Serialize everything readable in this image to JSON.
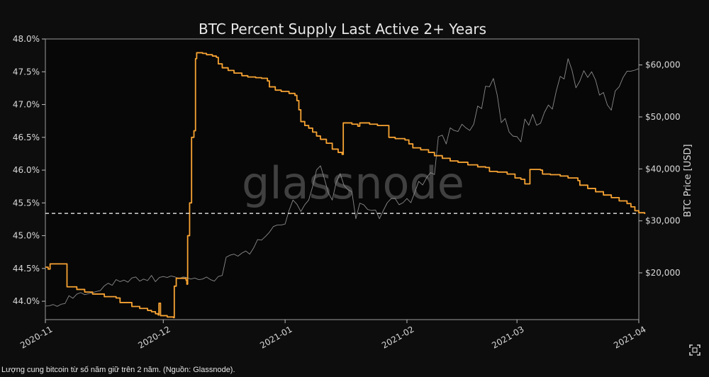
{
  "chart_data": {
    "type": "line",
    "title": "BTC Percent Supply Last Active 2+ Years",
    "watermark": "glassnode",
    "xlabel": "",
    "x_tick_labels": [
      "2020-11",
      "2020-12",
      "2021-01",
      "2021-02",
      "2021-03",
      "2021-04"
    ],
    "x_range_days": [
      0,
      151
    ],
    "x_tick_days": [
      0,
      30,
      61,
      92,
      120,
      151
    ],
    "y_left": {
      "label": "",
      "range": [
        43.72,
        48.0
      ],
      "ticks": [
        44.0,
        44.5,
        45.0,
        45.5,
        46.0,
        46.5,
        47.0,
        47.5,
        48.0
      ],
      "tick_labels": [
        "44.0%",
        "44.5%",
        "45.0%",
        "45.5%",
        "46.0%",
        "46.5%",
        "47.0%",
        "47.5%",
        "48.0%"
      ]
    },
    "y_right": {
      "label": "BTC Price [USD]",
      "range": [
        11000,
        65000
      ],
      "ticks": [
        20000,
        30000,
        40000,
        50000,
        60000
      ],
      "tick_labels": [
        "$20,000",
        "$30,000",
        "$40,000",
        "$50,000",
        "$60,000"
      ]
    },
    "reference_line": {
      "value": 45.34,
      "axis": "left",
      "style": "dashed"
    },
    "series": [
      {
        "name": "Percent Supply Last Active 2+ Years",
        "axis": "left",
        "color": "#f7a333",
        "step": true,
        "points": [
          [
            0,
            44.52
          ],
          [
            0.7,
            44.49
          ],
          [
            1.2,
            44.57
          ],
          [
            4.5,
            44.57
          ],
          [
            5.5,
            44.22
          ],
          [
            8,
            44.18
          ],
          [
            10,
            44.14
          ],
          [
            12,
            44.11
          ],
          [
            15,
            44.07
          ],
          [
            18,
            44.05
          ],
          [
            19,
            43.98
          ],
          [
            22,
            43.92
          ],
          [
            24,
            43.89
          ],
          [
            26,
            43.86
          ],
          [
            27,
            43.84
          ],
          [
            28,
            43.81
          ],
          [
            28.7,
            43.79
          ],
          [
            28.9,
            43.97
          ],
          [
            29.3,
            43.78
          ],
          [
            31,
            43.76
          ],
          [
            32.6,
            43.75
          ],
          [
            32.8,
            44.23
          ],
          [
            33.3,
            44.35
          ],
          [
            35.8,
            44.32
          ],
          [
            36,
            44.26
          ],
          [
            36.2,
            45.0
          ],
          [
            36.7,
            45.5
          ],
          [
            37.2,
            46.5
          ],
          [
            37.8,
            46.6
          ],
          [
            38.2,
            47.7
          ],
          [
            38.5,
            47.79
          ],
          [
            40,
            47.78
          ],
          [
            41,
            47.76
          ],
          [
            42.5,
            47.74
          ],
          [
            43.5,
            47.72
          ],
          [
            44,
            47.62
          ],
          [
            45,
            47.56
          ],
          [
            46.5,
            47.52
          ],
          [
            48,
            47.48
          ],
          [
            50,
            47.44
          ],
          [
            51.5,
            47.42
          ],
          [
            53.5,
            47.41
          ],
          [
            55,
            47.4
          ],
          [
            56.5,
            47.36
          ],
          [
            57,
            47.27
          ],
          [
            58.5,
            47.22
          ],
          [
            60,
            47.2
          ],
          [
            62,
            47.17
          ],
          [
            63.5,
            47.14
          ],
          [
            64,
            47.06
          ],
          [
            64.5,
            46.92
          ],
          [
            65,
            46.74
          ],
          [
            66,
            46.68
          ],
          [
            67,
            46.64
          ],
          [
            68,
            46.58
          ],
          [
            69,
            46.52
          ],
          [
            70,
            46.47
          ],
          [
            71.5,
            46.41
          ],
          [
            73,
            46.32
          ],
          [
            74.5,
            46.27
          ],
          [
            75.5,
            46.24
          ],
          [
            75.8,
            46.72
          ],
          [
            78,
            46.7
          ],
          [
            79.5,
            46.67
          ],
          [
            80,
            46.72
          ],
          [
            82.5,
            46.7
          ],
          [
            84.5,
            46.68
          ],
          [
            87,
            46.68
          ],
          [
            87.4,
            46.5
          ],
          [
            89,
            46.48
          ],
          [
            91.5,
            46.46
          ],
          [
            92.5,
            46.4
          ],
          [
            93.5,
            46.34
          ],
          [
            95.5,
            46.31
          ],
          [
            97.5,
            46.27
          ],
          [
            99,
            46.22
          ],
          [
            101,
            46.18
          ],
          [
            103,
            46.14
          ],
          [
            105,
            46.12
          ],
          [
            107.5,
            46.08
          ],
          [
            110,
            46.05
          ],
          [
            112,
            46.04
          ],
          [
            113,
            45.98
          ],
          [
            115,
            45.97
          ],
          [
            117.5,
            45.94
          ],
          [
            119.5,
            45.88
          ],
          [
            121,
            45.86
          ],
          [
            122,
            45.79
          ],
          [
            123,
            45.79
          ],
          [
            123.3,
            46.01
          ],
          [
            126,
            46.0
          ],
          [
            126.5,
            45.94
          ],
          [
            128.5,
            45.93
          ],
          [
            131,
            45.91
          ],
          [
            133,
            45.88
          ],
          [
            135.5,
            45.84
          ],
          [
            136,
            45.77
          ],
          [
            138,
            45.72
          ],
          [
            140,
            45.67
          ],
          [
            142,
            45.62
          ],
          [
            144,
            45.58
          ],
          [
            146,
            45.53
          ],
          [
            148,
            45.49
          ],
          [
            149,
            45.44
          ],
          [
            150,
            45.38
          ],
          [
            151,
            45.35
          ],
          [
            152.5,
            45.33
          ]
        ]
      },
      {
        "name": "BTC Price [USD]",
        "axis": "right",
        "color": "#8a8a8a",
        "step": false,
        "points": [
          [
            0,
            13600
          ],
          [
            1,
            13650
          ],
          [
            2,
            13900
          ],
          [
            3,
            13550
          ],
          [
            4,
            13950
          ],
          [
            5,
            14100
          ],
          [
            6,
            15600
          ],
          [
            7,
            15100
          ],
          [
            8,
            15900
          ],
          [
            9,
            16200
          ],
          [
            10,
            15800
          ],
          [
            12,
            16200
          ],
          [
            14,
            16600
          ],
          [
            15,
            17500
          ],
          [
            16,
            18000
          ],
          [
            17,
            17600
          ],
          [
            18,
            18700
          ],
          [
            19,
            18300
          ],
          [
            20,
            18600
          ],
          [
            21,
            18200
          ],
          [
            22,
            19000
          ],
          [
            23,
            19200
          ],
          [
            24,
            18400
          ],
          [
            25,
            18800
          ],
          [
            26,
            18500
          ],
          [
            27,
            19500
          ],
          [
            28,
            18300
          ],
          [
            29,
            19100
          ],
          [
            30,
            19300
          ],
          [
            31,
            19100
          ],
          [
            32,
            19400
          ],
          [
            33,
            19200
          ],
          [
            34,
            18900
          ],
          [
            35,
            19200
          ],
          [
            36,
            19100
          ],
          [
            37,
            18800
          ],
          [
            38,
            19000
          ],
          [
            39,
            18700
          ],
          [
            40,
            18800
          ],
          [
            41,
            19200
          ],
          [
            42,
            18700
          ],
          [
            43,
            18400
          ],
          [
            44,
            19300
          ],
          [
            45,
            19500
          ],
          [
            46,
            23000
          ],
          [
            47,
            23400
          ],
          [
            48,
            23600
          ],
          [
            49,
            23200
          ],
          [
            50,
            23800
          ],
          [
            51,
            24200
          ],
          [
            52,
            23600
          ],
          [
            53,
            24800
          ],
          [
            54,
            26400
          ],
          [
            55,
            26300
          ],
          [
            56,
            27000
          ],
          [
            57,
            27800
          ],
          [
            58,
            28900
          ],
          [
            59,
            29200
          ],
          [
            60,
            29200
          ],
          [
            61,
            29400
          ],
          [
            62,
            32000
          ],
          [
            63,
            34000
          ],
          [
            64,
            33200
          ],
          [
            65,
            31800
          ],
          [
            66,
            33100
          ],
          [
            67,
            34000
          ],
          [
            68,
            36600
          ],
          [
            69,
            39800
          ],
          [
            70,
            40600
          ],
          [
            71,
            38100
          ],
          [
            72,
            35400
          ],
          [
            73,
            34000
          ],
          [
            74,
            37400
          ],
          [
            75,
            39100
          ],
          [
            76,
            36800
          ],
          [
            77,
            36000
          ],
          [
            78,
            35600
          ],
          [
            79,
            30400
          ],
          [
            80,
            33400
          ],
          [
            81,
            33100
          ],
          [
            82,
            32200
          ],
          [
            83,
            32000
          ],
          [
            84,
            32100
          ],
          [
            85,
            30400
          ],
          [
            86,
            32000
          ],
          [
            87,
            33500
          ],
          [
            88,
            34300
          ],
          [
            89,
            34300
          ],
          [
            90,
            33100
          ],
          [
            91,
            33500
          ],
          [
            92,
            34300
          ],
          [
            93,
            33500
          ],
          [
            94,
            35500
          ],
          [
            95,
            37600
          ],
          [
            96,
            36900
          ],
          [
            97,
            38300
          ],
          [
            98,
            39300
          ],
          [
            99,
            38900
          ],
          [
            100,
            46200
          ],
          [
            101,
            46500
          ],
          [
            102,
            44800
          ],
          [
            103,
            47900
          ],
          [
            104,
            47400
          ],
          [
            105,
            47200
          ],
          [
            106,
            48600
          ],
          [
            107,
            47900
          ],
          [
            108,
            47400
          ],
          [
            109,
            48600
          ],
          [
            110,
            52100
          ],
          [
            111,
            51600
          ],
          [
            112,
            55900
          ],
          [
            113,
            55800
          ],
          [
            114,
            57400
          ],
          [
            115,
            54100
          ],
          [
            116,
            48900
          ],
          [
            117,
            49700
          ],
          [
            118,
            47100
          ],
          [
            119,
            46300
          ],
          [
            120,
            46200
          ],
          [
            121,
            45200
          ],
          [
            122,
            49600
          ],
          [
            123,
            48400
          ],
          [
            124,
            50500
          ],
          [
            125,
            48400
          ],
          [
            126,
            48800
          ],
          [
            127,
            50900
          ],
          [
            128,
            52300
          ],
          [
            129,
            51500
          ],
          [
            130,
            55000
          ],
          [
            131,
            57800
          ],
          [
            132,
            57300
          ],
          [
            133,
            61200
          ],
          [
            134,
            59000
          ],
          [
            135,
            55600
          ],
          [
            136,
            56900
          ],
          [
            137,
            58900
          ],
          [
            138,
            57600
          ],
          [
            139,
            58700
          ],
          [
            140,
            57100
          ],
          [
            141,
            54200
          ],
          [
            142,
            54700
          ],
          [
            143,
            52300
          ],
          [
            144,
            51300
          ],
          [
            145,
            55000
          ],
          [
            146,
            55800
          ],
          [
            147,
            57600
          ],
          [
            148,
            58800
          ],
          [
            149,
            58800
          ],
          [
            150,
            59000
          ],
          [
            151,
            59300
          ]
        ]
      }
    ]
  },
  "caption": "Lượng cung bitcoin từ số năm giữ trên 2 năm. (Nguồn: Glassnode).",
  "controls": {
    "expand_icon": "fullscreen-icon"
  }
}
